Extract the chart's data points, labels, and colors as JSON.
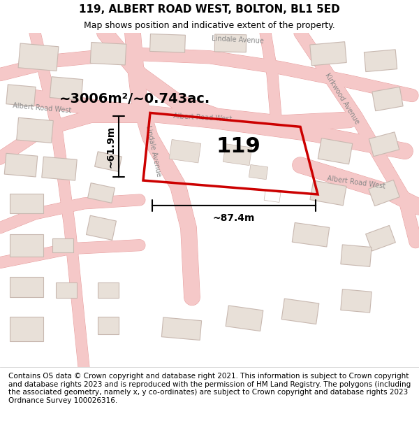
{
  "title": "119, ALBERT ROAD WEST, BOLTON, BL1 5ED",
  "subtitle": "Map shows position and indicative extent of the property.",
  "footer": "Contains OS data © Crown copyright and database right 2021. This information is subject to Crown copyright and database rights 2023 and is reproduced with the permission of HM Land Registry. The polygons (including the associated geometry, namely x, y co-ordinates) are subject to Crown copyright and database rights 2023 Ordnance Survey 100026316.",
  "property_number": "119",
  "area_text": "~3006m²/~0.743ac.",
  "width_text": "~87.4m",
  "height_text": "~61.9m",
  "bg_color": "#f5f0ee",
  "map_bg_color": "#f5f0ee",
  "road_color": "#f5c8c8",
  "road_outline_color": "#e8a0a0",
  "building_color": "#e8e0d8",
  "building_outline": "#c8b8b0",
  "highlight_color": "#cc0000",
  "highlight_fill": "none",
  "text_color": "#333333",
  "road_label_color": "#888888",
  "title_fontsize": 11,
  "subtitle_fontsize": 9,
  "footer_fontsize": 7.5,
  "property_label_fontsize": 22,
  "area_fontsize": 14,
  "dim_fontsize": 10,
  "road_label_fontsize": 7
}
